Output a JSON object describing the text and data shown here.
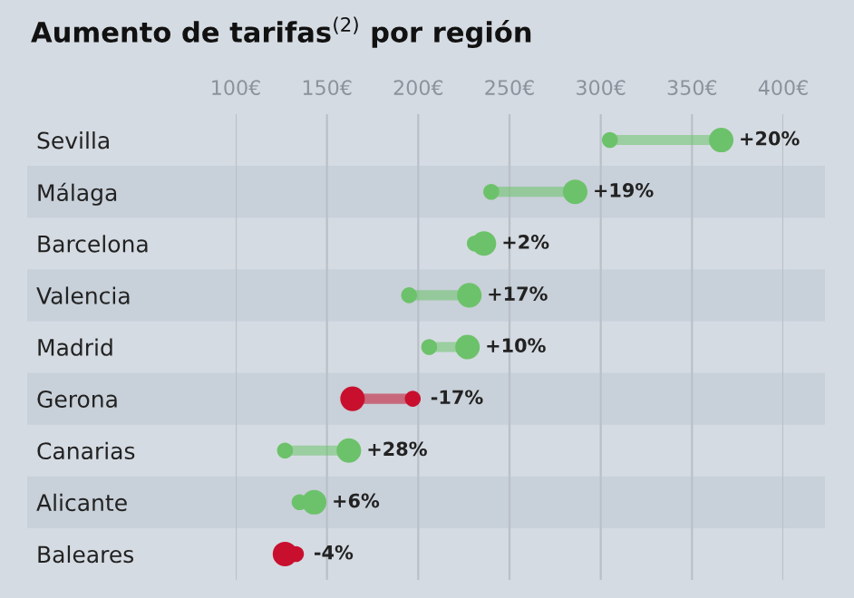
{
  "chart_data": {
    "type": "scatter",
    "title": "Aumento de tarifas$^{(2)}$ por región",
    "categories": [
      "Sevilla",
      "Málaga",
      "Barcelona",
      "Valencia",
      "Madrid",
      "Gerona",
      "Canarias",
      "Alicante",
      "Baleares"
    ],
    "orientation": "horizontal",
    "series": [
      {
        "values": [
          305,
          240,
          231,
          195,
          206,
          197,
          127,
          135,
          133
        ],
        "colors": [
          "#6cc26a",
          "#6cc26a",
          "#6cc26a",
          "#6cc26a",
          "#6cc26a",
          "#c8102e",
          "#6cc26a",
          "#6cc26a",
          "#c8102e"
        ]
      },
      {
        "values": [
          366,
          286,
          236,
          228,
          227,
          164,
          162,
          143,
          127
        ],
        "colors": [
          "#6cc26a",
          "#6cc26a",
          "#6cc26a",
          "#6cc26a",
          "#6cc26a",
          "#c8102e",
          "#6cc26a",
          "#6cc26a",
          "#c8102e"
        ]
      }
    ],
    "annotations": [
      {
        "text": "+20%",
        "x": 366,
        "y": "Sevilla"
      },
      {
        "text": "+19%",
        "x": 286,
        "y": "Málaga"
      },
      {
        "text": "+2%",
        "x": 236,
        "y": "Barcelona"
      },
      {
        "text": "+17%",
        "x": 228,
        "y": "Valencia"
      },
      {
        "text": "+10%",
        "x": 227,
        "y": "Madrid"
      },
      {
        "text": "-17%",
        "x": 197,
        "y": "Gerona"
      },
      {
        "text": "+28%",
        "x": 162,
        "y": "Canarias"
      },
      {
        "text": "+6%",
        "x": 143,
        "y": "Alicante"
      },
      {
        "text": "-4%",
        "x": 133,
        "y": "Baleares"
      }
    ],
    "xlim": [
      100,
      400
    ],
    "xticks": [
      {
        "value": 100,
        "label": "100€"
      },
      {
        "value": 150,
        "label": "150€"
      },
      {
        "value": 200,
        "label": "200€"
      },
      {
        "value": 250,
        "label": "250€"
      },
      {
        "value": 300,
        "label": "300€"
      },
      {
        "value": 350,
        "label": "350€"
      },
      {
        "value": 400,
        "label": "400€"
      }
    ],
    "grid": "x"
  }
}
